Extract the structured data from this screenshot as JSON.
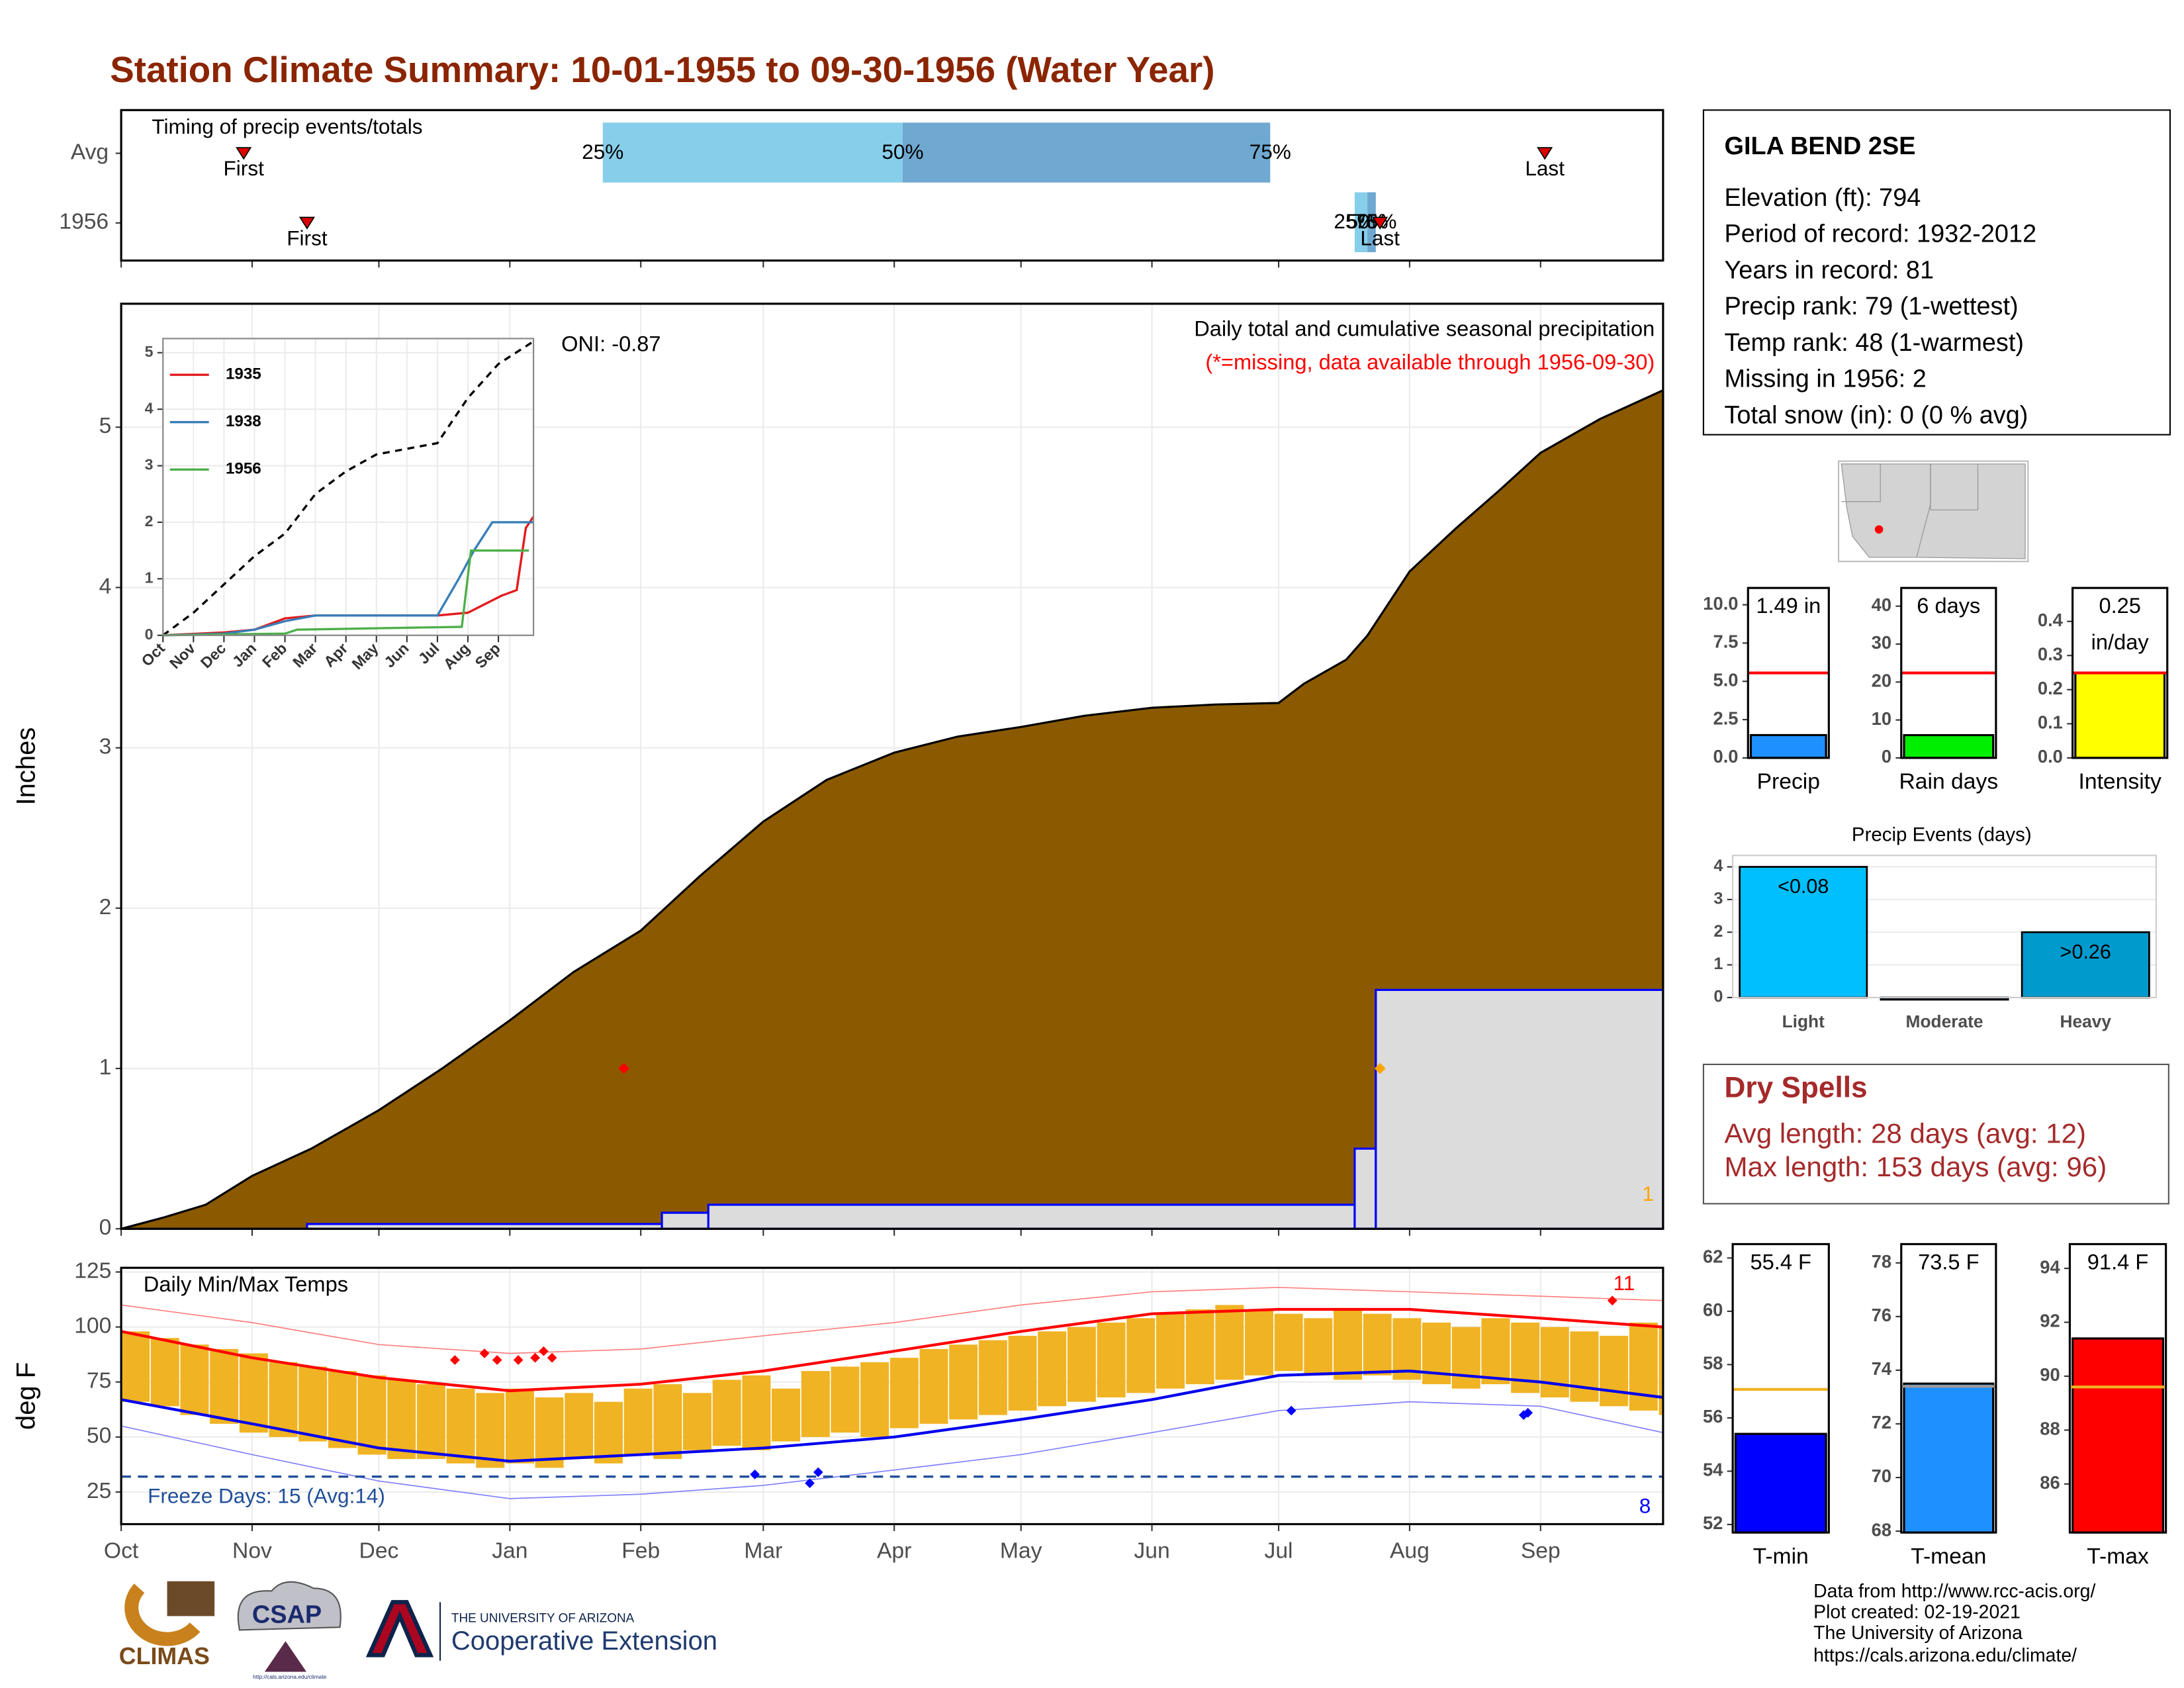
{
  "title": "Station Climate Summary: 10-01-1955 to 09-30-1956 (Water Year)",
  "station": {
    "name": "GILA BEND 2SE",
    "lines": [
      "Elevation (ft): 794",
      "Period of record: 1932-2012",
      "Years in record: 81",
      "Precip rank: 79 (1-wettest)",
      "Temp rank: 48 (1-warmest)",
      "Missing in 1956: 2",
      "Total snow (in): 0 (0 % avg)"
    ]
  },
  "dry_spells": {
    "title": "Dry Spells",
    "lines": [
      "Avg length: 28 days (avg: 12)",
      "Max length: 153 days (avg: 96)"
    ]
  },
  "footer": [
    "Data from http://www.rcc-acis.org/",
    "Plot created: 02-19-2021",
    "The University of Arizona",
    "https://cals.arizona.edu/climate/"
  ],
  "logos": {
    "climas": "CLIMAS",
    "csap": "CSAP",
    "csap_url": "http://cals.arizona.edu/climate",
    "ua": "THE UNIVERSITY OF ARIZONA",
    "extension": "Cooperative Extension"
  },
  "chart_data": [
    {
      "type": "timing",
      "label": "Timing of precip events/totals",
      "xlim": [
        0,
        365
      ],
      "xticks": [
        0,
        31,
        61,
        92,
        123,
        152,
        183,
        213,
        244,
        274,
        305,
        336
      ],
      "colors": [
        "#87ceeb",
        "#6fa8d0"
      ],
      "marker_color": "#dd0000",
      "rows": [
        {
          "name": "Avg",
          "first": 29,
          "first_label": "First",
          "last": 337,
          "last_label": "Last",
          "q": [
            114,
            185,
            272
          ],
          "q_labels": [
            "25%",
            "50%",
            "75%"
          ]
        },
        {
          "name": "1956",
          "first": 44,
          "first_label": "First",
          "last": 298,
          "last_label": "Last",
          "q": [
            292,
            295,
            297
          ],
          "q_labels": [
            "25%",
            "50%",
            "75%"
          ]
        }
      ]
    },
    {
      "type": "cumulative",
      "title": "Daily total and cumulative seasonal precipitation",
      "subtitle": "(*=missing, data available through 1956-09-30)",
      "oni": "ONI: -0.87",
      "ylabel": "Inches",
      "xlim": [
        0,
        365
      ],
      "ylim": [
        0,
        5.77
      ],
      "xticks": [
        0,
        31,
        61,
        92,
        123,
        152,
        183,
        213,
        244,
        274,
        305,
        336
      ],
      "yticks": [
        0,
        1,
        2,
        3,
        4,
        5
      ],
      "grid": true,
      "series": [
        {
          "color": "#8b5a00",
          "x": [
            0,
            10,
            20,
            31,
            45,
            61,
            76,
            92,
            107,
            123,
            137,
            152,
            167,
            183,
            198,
            213,
            228,
            244,
            259,
            274,
            280,
            290,
            295,
            305,
            316,
            326,
            336,
            350,
            365
          ],
          "values": [
            0,
            0.07,
            0.15,
            0.33,
            0.5,
            0.74,
            1.0,
            1.3,
            1.6,
            1.86,
            2.2,
            2.54,
            2.8,
            2.97,
            3.07,
            3.13,
            3.2,
            3.25,
            3.27,
            3.28,
            3.4,
            3.55,
            3.7,
            4.1,
            4.37,
            4.6,
            4.84,
            5.05,
            5.23
          ]
        },
        {
          "color": "#dcdcdc",
          "outline": "#0000ff",
          "x": [
            0,
            44,
            128,
            139,
            292,
            297
          ],
          "values": [
            0,
            0.03,
            0.1,
            0.15,
            0.5,
            1.49
          ]
        }
      ],
      "markers": [
        {
          "x": 119,
          "y": 1,
          "color": "#ff0000"
        },
        {
          "x": 298,
          "y": 1,
          "color": "#ffa500"
        }
      ],
      "missing_count": 1,
      "missing_color": "#ffa500"
    },
    {
      "type": "line",
      "xlim": [
        0,
        12.15
      ],
      "ylim": [
        0,
        5.25
      ],
      "grid": true,
      "xticks": [
        {
          "value": 0,
          "label": "Oct"
        },
        {
          "value": 1,
          "label": "Nov"
        },
        {
          "value": 2,
          "label": "Dec"
        },
        {
          "value": 3,
          "label": "Jan"
        },
        {
          "value": 4,
          "label": "Feb"
        },
        {
          "value": 5,
          "label": "Mar"
        },
        {
          "value": 6,
          "label": "Apr"
        },
        {
          "value": 7,
          "label": "May"
        },
        {
          "value": 8,
          "label": "Jun"
        },
        {
          "value": 9,
          "label": "Jul"
        },
        {
          "value": 10,
          "label": "Aug"
        },
        {
          "value": 11,
          "label": "Sep"
        }
      ],
      "yticks": [
        0,
        1,
        2,
        3,
        4,
        5
      ],
      "series": [
        {
          "color": "#000000",
          "dash": true,
          "x": [
            0,
            1,
            2,
            3,
            4,
            5,
            6,
            7,
            8,
            9,
            10,
            11,
            12.15
          ],
          "values": [
            0,
            0.4,
            0.9,
            1.4,
            1.8,
            2.5,
            2.9,
            3.2,
            3.3,
            3.4,
            4.2,
            4.8,
            5.2
          ]
        },
        {
          "name": "1935",
          "color": "#e41a1c",
          "x": [
            0,
            2,
            3,
            4,
            5,
            9,
            10,
            11.1,
            11.6,
            11.9,
            12.15
          ],
          "values": [
            0,
            0.05,
            0.1,
            0.3,
            0.35,
            0.35,
            0.4,
            0.7,
            0.8,
            1.9,
            2.1
          ]
        },
        {
          "name": "1938",
          "color": "#377eb8",
          "x": [
            0,
            2,
            3,
            4,
            5,
            9,
            9.7,
            10.2,
            10.8,
            11.3,
            12.15
          ],
          "values": [
            0,
            0.03,
            0.1,
            0.25,
            0.35,
            0.35,
            1.0,
            1.5,
            2.0,
            2.0,
            2.0
          ]
        },
        {
          "name": "1956",
          "color": "#4daf4a",
          "x": [
            0,
            4,
            4.4,
            9.8,
            10.1,
            12
          ],
          "values": [
            0,
            0.03,
            0.1,
            0.15,
            1.5,
            1.5
          ]
        }
      ]
    },
    {
      "type": "temperature",
      "title": "Daily Min/Max Temps",
      "ylabel": "deg F",
      "xlim": [
        0,
        365
      ],
      "ylim": [
        10.4,
        126.9
      ],
      "grid": true,
      "xticks": [
        {
          "value": 0,
          "label": "Oct"
        },
        {
          "value": 31,
          "label": "Nov"
        },
        {
          "value": 61,
          "label": "Dec"
        },
        {
          "value": 92,
          "label": "Jan"
        },
        {
          "value": 123,
          "label": "Feb"
        },
        {
          "value": 152,
          "label": "Mar"
        },
        {
          "value": 183,
          "label": "Apr"
        },
        {
          "value": 213,
          "label": "May"
        },
        {
          "value": 244,
          "label": "Jun"
        },
        {
          "value": 274,
          "label": "Jul"
        },
        {
          "value": 305,
          "label": "Aug"
        },
        {
          "value": 336,
          "label": "Sep"
        }
      ],
      "yticks": [
        25,
        50,
        75,
        100,
        125
      ],
      "x": [
        0,
        7,
        14,
        21,
        28,
        35,
        42,
        49,
        56,
        63,
        70,
        77,
        84,
        91,
        98,
        105,
        112,
        119,
        126,
        133,
        140,
        147,
        154,
        161,
        168,
        175,
        182,
        189,
        196,
        203,
        210,
        217,
        224,
        231,
        238,
        245,
        252,
        259,
        266,
        273,
        280,
        287,
        294,
        301,
        308,
        315,
        322,
        329,
        336,
        343,
        350,
        357,
        364
      ],
      "max": [
        98,
        95,
        92,
        90,
        88,
        84,
        82,
        80,
        78,
        76,
        74,
        72,
        70,
        72,
        68,
        70,
        66,
        72,
        74,
        70,
        76,
        78,
        72,
        80,
        82,
        84,
        86,
        90,
        92,
        94,
        96,
        98,
        100,
        102,
        104,
        106,
        108,
        110,
        108,
        106,
        104,
        108,
        106,
        104,
        102,
        100,
        104,
        102,
        100,
        98,
        96,
        102,
        100
      ],
      "min": [
        66,
        64,
        60,
        56,
        52,
        50,
        48,
        45,
        42,
        40,
        40,
        38,
        36,
        38,
        36,
        40,
        38,
        42,
        40,
        44,
        46,
        44,
        48,
        50,
        52,
        50,
        54,
        56,
        58,
        60,
        62,
        64,
        66,
        68,
        70,
        72,
        74,
        76,
        78,
        80,
        78,
        76,
        78,
        76,
        74,
        72,
        74,
        70,
        68,
        66,
        64,
        62,
        60
      ],
      "bar_color": "#f0b323",
      "normal_x": [
        0,
        31,
        61,
        92,
        123,
        152,
        183,
        213,
        244,
        274,
        305,
        336,
        365
      ],
      "normal_max": [
        98,
        86,
        77,
        71,
        74,
        80,
        89,
        98,
        106,
        108,
        108,
        104,
        100
      ],
      "normal_min": [
        67,
        56,
        45,
        39,
        42,
        45,
        50,
        58,
        67,
        78,
        80,
        75,
        68
      ],
      "record_max": [
        110,
        102,
        92,
        88,
        90,
        96,
        102,
        110,
        116,
        118,
        116,
        114,
        112
      ],
      "record_min": [
        55,
        42,
        30,
        22,
        24,
        28,
        35,
        42,
        52,
        62,
        66,
        64,
        52
      ],
      "max_color": "#ff0000",
      "min_color": "#0000ee",
      "record_max_color": "#ff8080",
      "record_min_color": "#8080ff",
      "freeze_threshold": 32,
      "freeze_label": "Freeze Days: 15 (Avg:14)",
      "freeze_color": "#1f4e99",
      "record_highs": {
        "x": [
          79,
          86,
          89,
          94,
          98,
          100,
          102,
          353
        ],
        "values": [
          85,
          88,
          85,
          85,
          86,
          89,
          86,
          112
        ],
        "color": "#ff0000"
      },
      "record_lows": {
        "x": [
          150,
          163,
          165,
          277,
          332,
          333
        ],
        "values": [
          33,
          29,
          34,
          62,
          60,
          61
        ],
        "color": "#0000ff"
      },
      "record_high_count": 11,
      "record_low_count": 8
    },
    {
      "type": "summary_bar",
      "label": "Precip",
      "ylim": [
        0,
        11.1
      ],
      "yticks": [
        {
          "value": 0,
          "label": "0.0"
        },
        2.5,
        {
          "value": 5,
          "label": "5.0"
        },
        7.5,
        {
          "value": 10,
          "label": "10.0"
        }
      ],
      "value": 1.49,
      "value_label": [
        "1.49 in"
      ],
      "avg": 5.55,
      "color": "#1e90ff",
      "avg_color": "#ff0000"
    },
    {
      "type": "summary_bar",
      "label": "Rain days",
      "ylim": [
        0,
        44.8
      ],
      "yticks": [
        0,
        10,
        20,
        30,
        40
      ],
      "value": 6,
      "value_label": [
        "6 days"
      ],
      "avg": 22.4,
      "color": "#00ee00",
      "avg_color": "#ff0000"
    },
    {
      "type": "summary_bar",
      "label": "Intensity",
      "ylim": [
        0,
        0.498
      ],
      "yticks": [
        {
          "value": 0,
          "label": "0.0"
        },
        0.1,
        0.2,
        0.3,
        0.4
      ],
      "value": 0.25,
      "value_label": [
        "0.25",
        "in/day"
      ],
      "avg": 0.249,
      "color": "#ffff00",
      "avg_color": "#ff0000"
    },
    {
      "type": "events_bar",
      "title": "Precip Events (days)",
      "ylim": [
        0,
        4.35
      ],
      "yticks": [
        0,
        1,
        2,
        3,
        4
      ],
      "grid": true,
      "categories": [
        "Light",
        "Moderate",
        "Heavy"
      ],
      "values": [
        4,
        0,
        2
      ],
      "bar_labels": [
        "<0.08",
        null,
        ">0.26"
      ],
      "colors": [
        "#00bfff",
        "#104e8b",
        "#009acd"
      ]
    },
    {
      "type": "summary_bar",
      "label": "T-min",
      "ylim": [
        51.7,
        62.52
      ],
      "yticks": [
        52,
        54,
        56,
        58,
        60,
        62
      ],
      "value": 55.4,
      "value_label": [
        "55.4 F"
      ],
      "avg": 57.07,
      "color": "#0000ff",
      "avg_color": "#f0b323"
    },
    {
      "type": "summary_bar",
      "label": "T-mean",
      "ylim": [
        67.95,
        78.7
      ],
      "yticks": [
        68,
        70,
        72,
        74,
        76,
        78
      ],
      "value": 73.5,
      "value_label": [
        "73.5 F"
      ],
      "avg": 73.4,
      "color": "#1e90ff",
      "avg_color": "#999999"
    },
    {
      "type": "summary_bar",
      "label": "T-max",
      "ylim": [
        84.2,
        94.9
      ],
      "yticks": [
        86,
        88,
        90,
        92,
        94
      ],
      "value": 91.4,
      "value_label": [
        "91.4 F"
      ],
      "avg": 89.6,
      "color": "#ff0000",
      "avg_color": "#f0b323"
    }
  ]
}
